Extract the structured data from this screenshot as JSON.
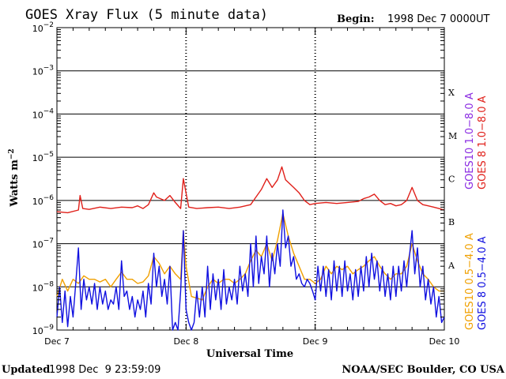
{
  "header": {
    "title": "GOES Xray Flux (5 minute data)",
    "begin_label": "Begin:",
    "begin_value": "1998 Dec 7 0000UT"
  },
  "footer": {
    "updated_label": "Updated",
    "updated_value": "1998 Dec  9 23:59:09",
    "credit": "NOAA/SEC Boulder, CO USA"
  },
  "colors": {
    "goes10_long": "#8a2be2",
    "goes8_long": "#e0201a",
    "goes10_short": "#f0a000",
    "goes8_short": "#1010e0"
  },
  "chart_data": {
    "type": "line",
    "title": "GOES Xray Flux (5 minute data)",
    "xlabel": "Universal Time",
    "ylabel": "Watts m⁻²",
    "y_scale": "log",
    "ylim": [
      1e-09,
      0.01
    ],
    "xlim": [
      0,
      72
    ],
    "x_unit": "hours since 1998 Dec 7 0000UT",
    "y_ticks": [
      {
        "base": "10",
        "exp": "−9"
      },
      {
        "base": "10",
        "exp": "−8"
      },
      {
        "base": "10",
        "exp": "−7"
      },
      {
        "base": "10",
        "exp": "−6"
      },
      {
        "base": "10",
        "exp": "−5"
      },
      {
        "base": "10",
        "exp": "−4"
      },
      {
        "base": "10",
        "exp": "−3"
      },
      {
        "base": "10",
        "exp": "−2"
      }
    ],
    "x_ticks": [
      {
        "x": 0,
        "label": "Dec 7"
      },
      {
        "x": 24,
        "label": "Dec 8"
      },
      {
        "x": 48,
        "label": "Dec 9"
      },
      {
        "x": 72,
        "label": "Dec 10"
      }
    ],
    "flare_classes": [
      {
        "label": "A",
        "exp": -8
      },
      {
        "label": "B",
        "exp": -7
      },
      {
        "label": "C",
        "exp": -6
      },
      {
        "label": "M",
        "exp": -5
      },
      {
        "label": "X",
        "exp": -4
      }
    ],
    "grid": true,
    "legend_placement": "right (rotated)",
    "legend": [
      {
        "text": "GOES10 1.0−8.0 A",
        "color": "#8a2be2"
      },
      {
        "text": "GOES 8 1.0−8.0 A",
        "color": "#e0201a"
      },
      {
        "text": "GOES10 0.5−4.0 A",
        "color": "#f0a000"
      },
      {
        "text": "GOES 8 0.5−4.0 A",
        "color": "#1010e0"
      }
    ],
    "series": [
      {
        "name": "GOES 8 1.0−8.0 A",
        "color": "#e0201a",
        "points": [
          [
            0,
            5.5e-07
          ],
          [
            2,
            5.2e-07
          ],
          [
            4,
            6e-07
          ],
          [
            4.3,
            1.3e-06
          ],
          [
            4.8,
            6.5e-07
          ],
          [
            6,
            6.2e-07
          ],
          [
            8,
            7e-07
          ],
          [
            10,
            6.5e-07
          ],
          [
            12,
            7e-07
          ],
          [
            14,
            6.8e-07
          ],
          [
            15,
            7.5e-07
          ],
          [
            16,
            6.5e-07
          ],
          [
            17,
            8e-07
          ],
          [
            18,
            1.5e-06
          ],
          [
            18.5,
            1.2e-06
          ],
          [
            20,
            1e-06
          ],
          [
            21,
            1.3e-06
          ],
          [
            22,
            9e-07
          ],
          [
            23,
            6.5e-07
          ],
          [
            23.5,
            3.2e-06
          ],
          [
            24,
            1.5e-06
          ],
          [
            24.5,
            7e-07
          ],
          [
            26,
            6.5e-07
          ],
          [
            28,
            6.8e-07
          ],
          [
            30,
            7e-07
          ],
          [
            32,
            6.5e-07
          ],
          [
            34,
            7e-07
          ],
          [
            36,
            8e-07
          ],
          [
            37,
            1.2e-06
          ],
          [
            38,
            1.8e-06
          ],
          [
            39,
            3.2e-06
          ],
          [
            40,
            2e-06
          ],
          [
            41,
            3e-06
          ],
          [
            41.8,
            6e-06
          ],
          [
            42.5,
            3e-06
          ],
          [
            44,
            2e-06
          ],
          [
            45,
            1.5e-06
          ],
          [
            46,
            1e-06
          ],
          [
            47,
            8e-07
          ],
          [
            48,
            8.5e-07
          ],
          [
            50,
            9e-07
          ],
          [
            52,
            8.5e-07
          ],
          [
            54,
            9e-07
          ],
          [
            56,
            9.5e-07
          ],
          [
            57,
            1.1e-06
          ],
          [
            58,
            1.2e-06
          ],
          [
            59,
            1.4e-06
          ],
          [
            60,
            1e-06
          ],
          [
            61,
            8e-07
          ],
          [
            62,
            8.5e-07
          ],
          [
            63,
            7.5e-07
          ],
          [
            64,
            8e-07
          ],
          [
            65,
            1e-06
          ],
          [
            66,
            2e-06
          ],
          [
            67,
            1e-06
          ],
          [
            68,
            8e-07
          ],
          [
            69,
            7.5e-07
          ],
          [
            70,
            7e-07
          ],
          [
            71,
            6.5e-07
          ],
          [
            72,
            6e-07
          ]
        ]
      },
      {
        "name": "GOES10 0.5−4.0 A",
        "color": "#f0a000",
        "points": [
          [
            0,
            6e-09
          ],
          [
            1,
            1.5e-08
          ],
          [
            2,
            8e-09
          ],
          [
            3,
            1.5e-08
          ],
          [
            4,
            1.2e-08
          ],
          [
            5,
            1.8e-08
          ],
          [
            6,
            1.5e-08
          ],
          [
            7,
            1.5e-08
          ],
          [
            8,
            1.3e-08
          ],
          [
            9,
            1.5e-08
          ],
          [
            10,
            1e-08
          ],
          [
            11,
            1.5e-08
          ],
          [
            12,
            2.2e-08
          ],
          [
            13,
            1.5e-08
          ],
          [
            14,
            1.5e-08
          ],
          [
            15,
            1.2e-08
          ],
          [
            16,
            1.3e-08
          ],
          [
            17,
            1.8e-08
          ],
          [
            18,
            5e-08
          ],
          [
            19,
            3.5e-08
          ],
          [
            20,
            2e-08
          ],
          [
            21,
            3e-08
          ],
          [
            22,
            2e-08
          ],
          [
            23,
            1.5e-08
          ],
          [
            23.5,
            2e-07
          ],
          [
            24,
            3e-08
          ],
          [
            25,
            6e-09
          ],
          [
            27,
            5e-09
          ],
          [
            28,
            1e-08
          ],
          [
            29,
            1.5e-08
          ],
          [
            30,
            1.2e-08
          ],
          [
            31,
            1.5e-08
          ],
          [
            32,
            1.5e-08
          ],
          [
            33,
            1.2e-08
          ],
          [
            34,
            1.5e-08
          ],
          [
            35,
            2e-08
          ],
          [
            36,
            4e-08
          ],
          [
            37,
            7e-08
          ],
          [
            38,
            5e-08
          ],
          [
            39,
            1e-07
          ],
          [
            40,
            4e-08
          ],
          [
            41,
            1.2e-07
          ],
          [
            42,
            5e-07
          ],
          [
            43,
            1.5e-07
          ],
          [
            44,
            6e-08
          ],
          [
            45,
            3e-08
          ],
          [
            46,
            1.5e-08
          ],
          [
            47,
            1.5e-08
          ],
          [
            48,
            1.2e-08
          ],
          [
            49,
            1.5e-08
          ],
          [
            50,
            3e-08
          ],
          [
            51,
            2e-08
          ],
          [
            52,
            3e-08
          ],
          [
            53,
            2.5e-08
          ],
          [
            54,
            3e-08
          ],
          [
            55,
            2e-08
          ],
          [
            56,
            2.5e-08
          ],
          [
            57,
            3e-08
          ],
          [
            58,
            4e-08
          ],
          [
            59,
            5e-08
          ],
          [
            60,
            3e-08
          ],
          [
            61,
            2e-08
          ],
          [
            62,
            1.5e-08
          ],
          [
            63,
            2e-08
          ],
          [
            64,
            2e-08
          ],
          [
            65,
            3e-08
          ],
          [
            66,
            1e-07
          ],
          [
            67,
            4e-08
          ],
          [
            68,
            2e-08
          ],
          [
            69,
            1.5e-08
          ],
          [
            70,
            1e-08
          ],
          [
            71,
            8e-09
          ],
          [
            72,
            8e-09
          ]
        ]
      },
      {
        "name": "GOES 8 0.5−4.0 A",
        "color": "#1010e0",
        "points": [
          [
            0,
            2e-09
          ],
          [
            0.5,
            1e-08
          ],
          [
            1,
            1.5e-09
          ],
          [
            1.5,
            8e-09
          ],
          [
            2,
            1.2e-09
          ],
          [
            2.5,
            6e-09
          ],
          [
            3,
            2e-09
          ],
          [
            3.5,
            1.2e-08
          ],
          [
            4,
            8e-08
          ],
          [
            4.5,
            3e-09
          ],
          [
            5,
            1.5e-08
          ],
          [
            5.5,
            5e-09
          ],
          [
            6,
            1e-08
          ],
          [
            6.5,
            4e-09
          ],
          [
            7,
            1.2e-08
          ],
          [
            7.5,
            3e-09
          ],
          [
            8,
            1e-08
          ],
          [
            8.5,
            4e-09
          ],
          [
            9,
            8e-09
          ],
          [
            9.5,
            3e-09
          ],
          [
            10,
            5e-09
          ],
          [
            10.5,
            4e-09
          ],
          [
            11,
            1e-08
          ],
          [
            11.5,
            3e-09
          ],
          [
            12,
            4e-08
          ],
          [
            12.5,
            6e-09
          ],
          [
            13,
            8e-09
          ],
          [
            13.5,
            3e-09
          ],
          [
            14,
            6e-09
          ],
          [
            14.5,
            2e-09
          ],
          [
            15,
            5e-09
          ],
          [
            15.5,
            3e-09
          ],
          [
            16,
            8e-09
          ],
          [
            16.5,
            2e-09
          ],
          [
            17,
            1.2e-08
          ],
          [
            17.5,
            4e-09
          ],
          [
            18,
            6e-08
          ],
          [
            18.5,
            1e-08
          ],
          [
            19,
            3e-08
          ],
          [
            19.5,
            6e-09
          ],
          [
            20,
            1.5e-08
          ],
          [
            20.5,
            4e-09
          ],
          [
            21,
            3e-08
          ],
          [
            21.5,
            1e-09
          ],
          [
            22,
            1.5e-09
          ],
          [
            22.5,
            1e-09
          ],
          [
            23,
            8e-09
          ],
          [
            23.5,
            2e-07
          ],
          [
            24,
            3e-09
          ],
          [
            24.5,
            1.5e-09
          ],
          [
            25,
            1e-09
          ],
          [
            25.5,
            1.5e-09
          ],
          [
            26,
            8e-09
          ],
          [
            26.5,
            2e-09
          ],
          [
            27,
            1e-08
          ],
          [
            27.5,
            2e-09
          ],
          [
            28,
            3e-08
          ],
          [
            28.5,
            3e-09
          ],
          [
            29,
            2e-08
          ],
          [
            29.5,
            5e-09
          ],
          [
            30,
            1.5e-08
          ],
          [
            30.5,
            3e-09
          ],
          [
            31,
            2.5e-08
          ],
          [
            31.5,
            4e-09
          ],
          [
            32,
            1e-08
          ],
          [
            32.5,
            5e-09
          ],
          [
            33,
            1.5e-08
          ],
          [
            33.5,
            4e-09
          ],
          [
            34,
            3e-08
          ],
          [
            34.5,
            8e-09
          ],
          [
            35,
            2e-08
          ],
          [
            35.5,
            6e-09
          ],
          [
            36,
            1e-07
          ],
          [
            36.5,
            1e-08
          ],
          [
            37,
            1.5e-07
          ],
          [
            37.5,
            1.2e-08
          ],
          [
            38,
            5e-08
          ],
          [
            38.5,
            2e-08
          ],
          [
            39,
            1.5e-07
          ],
          [
            39.5,
            1e-08
          ],
          [
            40,
            6e-08
          ],
          [
            40.5,
            2e-08
          ],
          [
            41,
            1e-07
          ],
          [
            41.5,
            3e-08
          ],
          [
            42,
            6e-07
          ],
          [
            42.5,
            8e-08
          ],
          [
            43,
            1.5e-07
          ],
          [
            43.5,
            3e-08
          ],
          [
            44,
            5e-08
          ],
          [
            44.5,
            1.5e-08
          ],
          [
            45,
            2e-08
          ],
          [
            45.5,
            1.2e-08
          ],
          [
            46,
            1e-08
          ],
          [
            46.5,
            1.5e-08
          ],
          [
            47,
            1.2e-08
          ],
          [
            47.5,
            8e-09
          ],
          [
            48,
            5e-09
          ],
          [
            48.5,
            3e-08
          ],
          [
            49,
            8e-09
          ],
          [
            49.5,
            3e-08
          ],
          [
            50,
            6e-09
          ],
          [
            50.5,
            2.5e-08
          ],
          [
            51,
            5e-09
          ],
          [
            51.5,
            4e-08
          ],
          [
            52,
            8e-09
          ],
          [
            52.5,
            3e-08
          ],
          [
            53,
            6e-09
          ],
          [
            53.5,
            4e-08
          ],
          [
            54,
            8e-09
          ],
          [
            54.5,
            2e-08
          ],
          [
            55,
            5e-09
          ],
          [
            55.5,
            2.5e-08
          ],
          [
            56,
            6e-09
          ],
          [
            56.5,
            3e-08
          ],
          [
            57,
            8e-09
          ],
          [
            57.5,
            5e-08
          ],
          [
            58,
            1e-08
          ],
          [
            58.5,
            6e-08
          ],
          [
            59,
            1.5e-08
          ],
          [
            59.5,
            4e-08
          ],
          [
            60,
            8e-09
          ],
          [
            60.5,
            3e-08
          ],
          [
            61,
            6e-09
          ],
          [
            61.5,
            2e-08
          ],
          [
            62,
            5e-09
          ],
          [
            62.5,
            3e-08
          ],
          [
            63,
            6e-09
          ],
          [
            63.5,
            3e-08
          ],
          [
            64,
            8e-09
          ],
          [
            64.5,
            4e-08
          ],
          [
            65,
            1e-08
          ],
          [
            65.5,
            5e-08
          ],
          [
            66,
            2e-07
          ],
          [
            66.5,
            2e-08
          ],
          [
            67,
            8e-08
          ],
          [
            67.5,
            1e-08
          ],
          [
            68,
            3e-08
          ],
          [
            68.5,
            5e-09
          ],
          [
            69,
            1.5e-08
          ],
          [
            69.5,
            4e-09
          ],
          [
            70,
            1e-08
          ],
          [
            70.5,
            2e-09
          ],
          [
            71,
            6e-09
          ],
          [
            71.5,
            1.5e-09
          ],
          [
            72,
            2e-09
          ]
        ]
      }
    ]
  }
}
